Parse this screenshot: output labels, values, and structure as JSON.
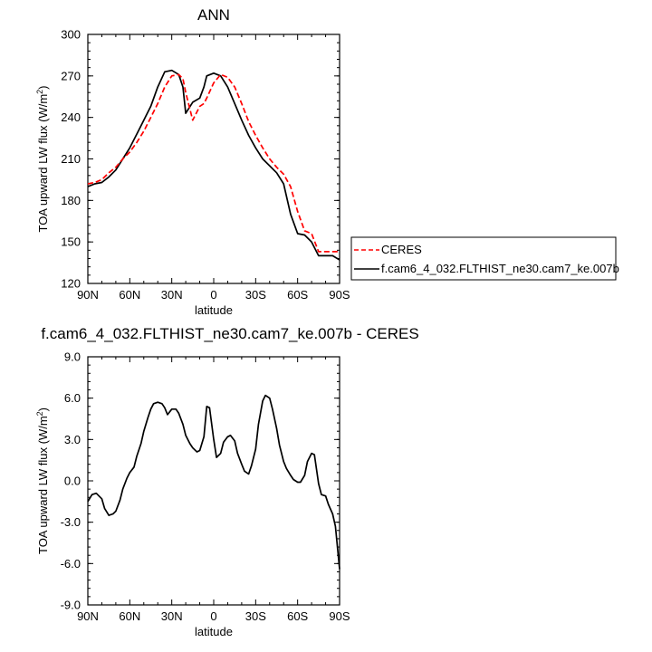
{
  "chart_data": [
    {
      "type": "line",
      "title": "ANN",
      "xlabel": "latitude",
      "ylabel": "TOA upward LW flux (W/m",
      "ylabel_sup": "2",
      "ylabel_end": ")",
      "xlim": [
        90,
        -90
      ],
      "ylim": [
        120,
        300
      ],
      "xticks": [
        90,
        60,
        30,
        0,
        -30,
        -60,
        -90
      ],
      "xtick_labels": [
        "90N",
        "60N",
        "30N",
        "0",
        "30S",
        "60S",
        "90S"
      ],
      "yticks": [
        120,
        150,
        180,
        210,
        240,
        270,
        300
      ],
      "ytick_labels": [
        "120",
        "150",
        "180",
        "210",
        "240",
        "270",
        "300"
      ],
      "legend": "right, outside plot",
      "series": [
        {
          "name": "CERES",
          "color": "#ff0000",
          "dash": "dashed",
          "x": [
            90,
            85,
            80,
            75,
            70,
            65,
            60,
            55,
            50,
            45,
            40,
            35,
            30,
            25,
            22,
            20,
            15,
            10,
            7,
            5,
            0,
            -5,
            -10,
            -15,
            -20,
            -25,
            -30,
            -35,
            -40,
            -45,
            -50,
            -55,
            -60,
            -65,
            -70,
            -75,
            -80,
            -85,
            -90
          ],
          "y": [
            192,
            193,
            195,
            200,
            204,
            210,
            215,
            222,
            230,
            240,
            250,
            262,
            270,
            271,
            268,
            258,
            238,
            248,
            250,
            254,
            265,
            271,
            269,
            262,
            250,
            237,
            227,
            218,
            210,
            204,
            199,
            190,
            172,
            158,
            156,
            143,
            143,
            143,
            143
          ]
        },
        {
          "name": "f.cam6_4_032.FLTHIST_ne30.cam7_ke.007b",
          "color": "#000000",
          "dash": "solid",
          "x": [
            90,
            85,
            80,
            75,
            70,
            65,
            60,
            55,
            50,
            45,
            40,
            35,
            30,
            25,
            22,
            20,
            15,
            10,
            7,
            5,
            0,
            -5,
            -10,
            -15,
            -20,
            -25,
            -30,
            -35,
            -40,
            -45,
            -50,
            -55,
            -60,
            -65,
            -70,
            -75,
            -80,
            -85,
            -90
          ],
          "y": [
            190,
            192,
            193,
            197,
            202,
            210,
            218,
            228,
            238,
            248,
            262,
            273,
            274,
            271,
            262,
            243,
            251,
            254,
            262,
            270,
            272,
            270,
            262,
            250,
            238,
            227,
            218,
            210,
            205,
            200,
            192,
            170,
            156,
            155,
            150,
            140,
            140,
            140,
            137
          ]
        }
      ]
    },
    {
      "type": "line",
      "title": "f.cam6_4_032.FLTHIST_ne30.cam7_ke.007b - CERES",
      "xlabel": "latitude",
      "ylabel": "TOA upward LW flux (W/m",
      "ylabel_sup": "2",
      "ylabel_end": ")",
      "xlim": [
        90,
        -90
      ],
      "ylim": [
        -9,
        9
      ],
      "xticks": [
        90,
        60,
        30,
        0,
        -30,
        -60,
        -90
      ],
      "xtick_labels": [
        "90N",
        "60N",
        "30N",
        "0",
        "30S",
        "60S",
        "90S"
      ],
      "yticks": [
        -9,
        -6,
        -3,
        0,
        3,
        6,
        9
      ],
      "ytick_labels": [
        "-9.0",
        "-6.0",
        "-3.0",
        "0.0",
        "3.0",
        "6.0",
        "9.0"
      ],
      "series": [
        {
          "color": "#000000",
          "dash": "solid",
          "x": [
            90,
            87,
            84,
            80,
            78,
            75,
            72,
            70,
            67,
            65,
            62,
            60,
            57,
            55,
            52,
            50,
            47,
            45,
            43,
            40,
            37,
            35,
            33,
            30,
            27,
            25,
            22,
            20,
            17,
            15,
            12,
            10,
            7,
            5,
            3,
            0,
            -2,
            -5,
            -7,
            -10,
            -12,
            -15,
            -17,
            -20,
            -22,
            -25,
            -27,
            -30,
            -32,
            -35,
            -37,
            -40,
            -42,
            -45,
            -47,
            -50,
            -52,
            -55,
            -57,
            -60,
            -62,
            -65,
            -67,
            -70,
            -72,
            -75,
            -77,
            -80,
            -82,
            -85,
            -87,
            -90
          ],
          "y": [
            -1.5,
            -1.0,
            -0.9,
            -1.3,
            -2.0,
            -2.5,
            -2.4,
            -2.2,
            -1.4,
            -0.6,
            0.2,
            0.6,
            1.0,
            1.8,
            2.7,
            3.6,
            4.6,
            5.2,
            5.6,
            5.7,
            5.6,
            5.3,
            4.8,
            5.2,
            5.2,
            4.9,
            4.1,
            3.3,
            2.7,
            2.4,
            2.1,
            2.2,
            3.2,
            5.4,
            5.3,
            3.0,
            1.7,
            2.0,
            2.8,
            3.2,
            3.3,
            2.9,
            2.0,
            1.2,
            0.7,
            0.5,
            1.1,
            2.3,
            4.1,
            5.8,
            6.2,
            6.0,
            5.2,
            3.8,
            2.6,
            1.4,
            0.9,
            0.4,
            0.1,
            -0.1,
            -0.1,
            0.4,
            1.4,
            2.0,
            1.9,
            -0.2,
            -1.0,
            -1.1,
            -1.7,
            -2.4,
            -3.3,
            -6.4
          ]
        }
      ]
    }
  ]
}
